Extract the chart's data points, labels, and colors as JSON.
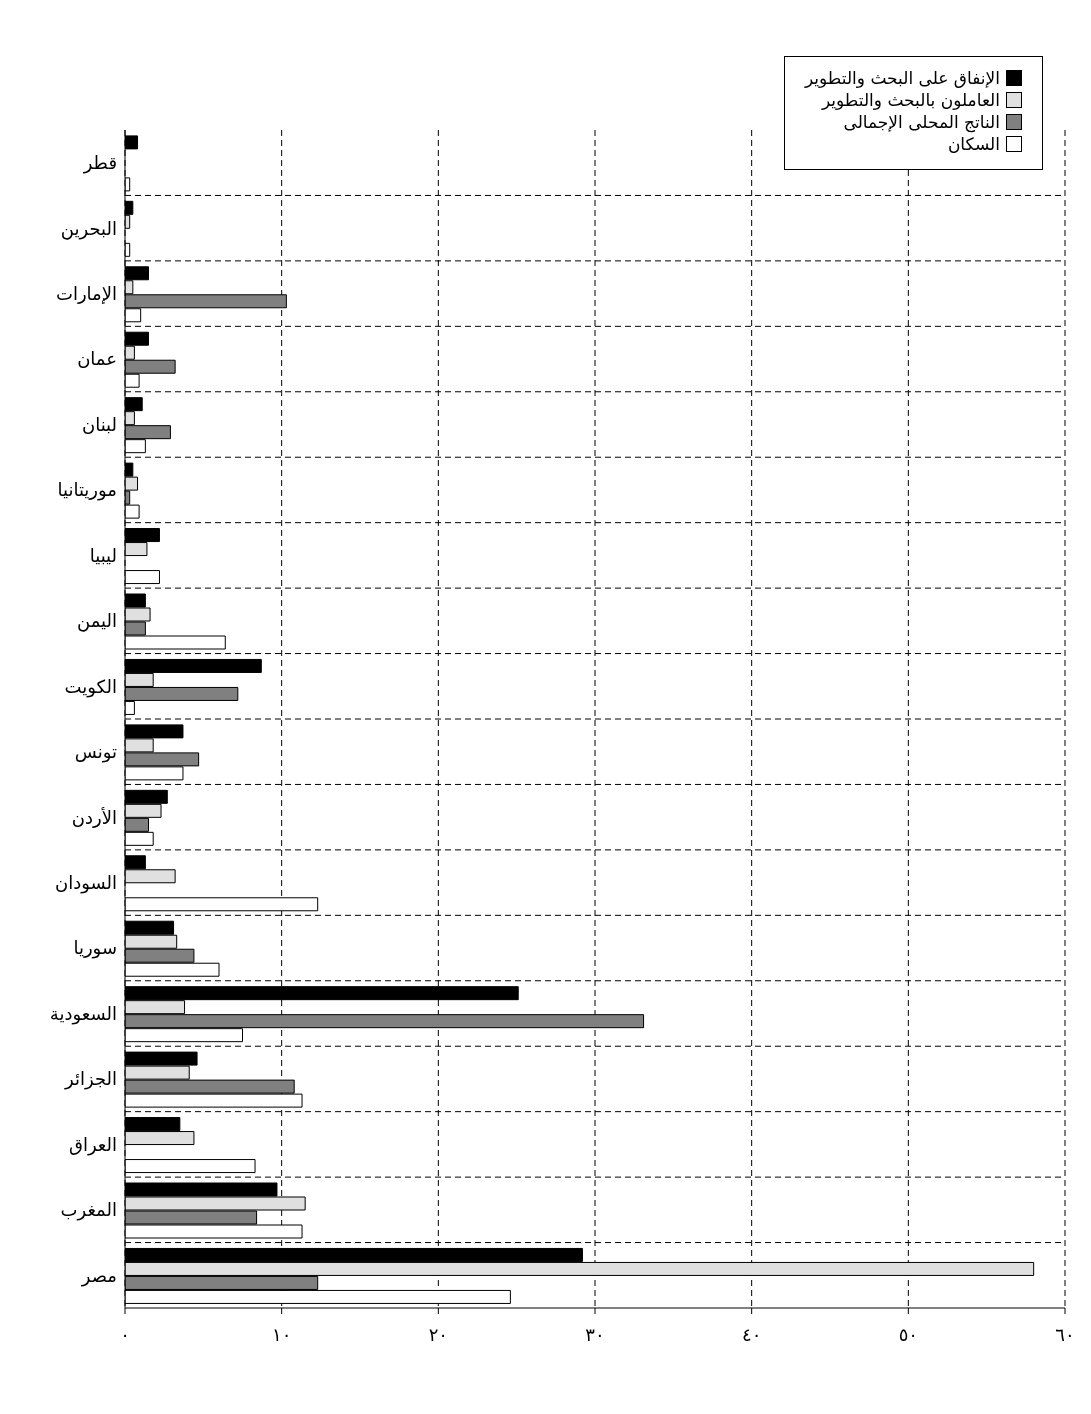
{
  "chart_data": {
    "type": "bar",
    "orientation": "horizontal",
    "categories": [
      "قطر",
      "البحرين",
      "الإمارات",
      "عمان",
      "لبنان",
      "موريتانيا",
      "ليبيا",
      "اليمن",
      "الكويت",
      "تونس",
      "الأردن",
      "السودان",
      "سوريا",
      "السعودية",
      "الجزائر",
      "العراق",
      "المغرب",
      "مصر"
    ],
    "series": [
      {
        "name": "الإنفاق على البحث والتطوير",
        "color": "#000000",
        "values": [
          0.8,
          0.5,
          1.5,
          1.5,
          1.1,
          0.5,
          2.2,
          1.3,
          8.7,
          3.7,
          2.7,
          1.3,
          3.1,
          25.1,
          4.6,
          3.5,
          9.7,
          29.2
        ]
      },
      {
        "name": "العاملون بالبحث والتطوير",
        "color": "#e0e0e0",
        "values": [
          null,
          0.3,
          0.5,
          0.6,
          0.6,
          0.8,
          1.4,
          1.6,
          1.8,
          1.8,
          2.3,
          3.2,
          3.3,
          3.8,
          4.1,
          4.4,
          11.5,
          58.0
        ]
      },
      {
        "name": "الناتج المحلى الإجمالى",
        "color": "#808080",
        "values": [
          null,
          null,
          10.3,
          3.2,
          2.9,
          0.3,
          null,
          1.3,
          7.2,
          4.7,
          1.5,
          null,
          4.4,
          33.1,
          10.8,
          null,
          8.4,
          12.3
        ]
      },
      {
        "name": "السكان",
        "color": "#ffffff",
        "values": [
          0.3,
          0.3,
          1.0,
          0.9,
          1.3,
          0.9,
          2.2,
          6.4,
          0.6,
          3.7,
          1.8,
          12.3,
          6.0,
          7.5,
          11.3,
          8.3,
          11.3,
          24.6
        ]
      }
    ],
    "xlim": [
      0,
      60
    ],
    "xticks": [
      {
        "value": 0,
        "label": "٠"
      },
      {
        "value": 10,
        "label": "١٠"
      },
      {
        "value": 20,
        "label": "٢٠"
      },
      {
        "value": 30,
        "label": "٣٠"
      },
      {
        "value": 40,
        "label": "٤٠"
      },
      {
        "value": 50,
        "label": "٥٠"
      },
      {
        "value": 60,
        "label": "٦٠"
      }
    ],
    "grid": true,
    "line_style": "dashed",
    "legend": "top right"
  }
}
